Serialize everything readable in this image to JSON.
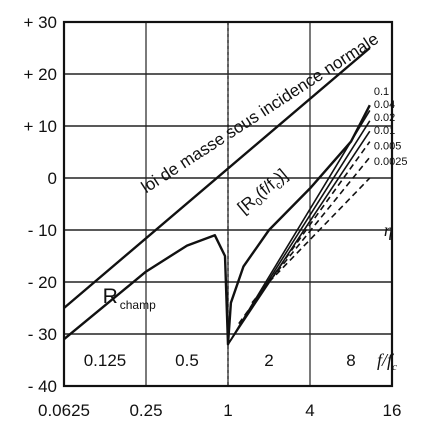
{
  "chart_data": {
    "type": "line",
    "x_scale": "log2",
    "x_major_ticks": [
      "0.0625",
      "0.25",
      "1",
      "4",
      "16"
    ],
    "x_minor_ticks": [
      "0.125",
      "0.5",
      "2",
      "8"
    ],
    "x_axis_label": "f/fc",
    "y_axis_ticks": [
      "+ 30",
      "+ 20",
      "+ 10",
      "0",
      "- 10",
      "- 20",
      "- 30",
      "- 40"
    ],
    "ylim": [
      -40,
      30
    ],
    "xlim": [
      0.0625,
      16
    ],
    "grid": true,
    "series": [
      {
        "name": "loi de masse sous incidence normale",
        "x": [
          0.0625,
          11
        ],
        "y": [
          -25,
          25
        ]
      },
      {
        "name": "R champ",
        "x": [
          0.0625,
          0.25,
          0.5,
          0.8,
          0.95,
          1.0,
          1.05,
          1.3,
          2,
          4,
          8,
          11
        ],
        "y": [
          -31,
          -18,
          -13,
          -11,
          -15,
          -32,
          -24,
          -17,
          -10,
          -2,
          7,
          14
        ]
      },
      {
        "name": "0.1",
        "x": [
          1.0,
          11
        ],
        "y": [
          -32,
          13
        ]
      },
      {
        "name": "0.04",
        "x": [
          1.0,
          11
        ],
        "y": [
          -32,
          11
        ]
      },
      {
        "name": "0.02",
        "x": [
          1.0,
          11
        ],
        "y": [
          -32,
          9
        ]
      },
      {
        "name": "0.01",
        "x": [
          1.2,
          11
        ],
        "y": [
          -28,
          7
        ]
      },
      {
        "name": "0.005",
        "x": [
          1.5,
          11
        ],
        "y": [
          -24,
          4
        ]
      },
      {
        "name": "0.0025",
        "x": [
          2.0,
          11
        ],
        "y": [
          -20,
          0
        ]
      }
    ],
    "annotations": {
      "mass_law": "loi de masse sous incidence normale",
      "r_champ_main": "R",
      "r_champ_sub": "champ",
      "bracket_main": "[R",
      "bracket_sub": "0",
      "bracket_tail": "(f/f",
      "bracket_sub2": "c",
      "bracket_end": ")]",
      "eta": "η"
    },
    "eta_values": [
      "0.1",
      "0.04",
      "0.02",
      "0.01",
      "0.005",
      "0.0025"
    ]
  }
}
